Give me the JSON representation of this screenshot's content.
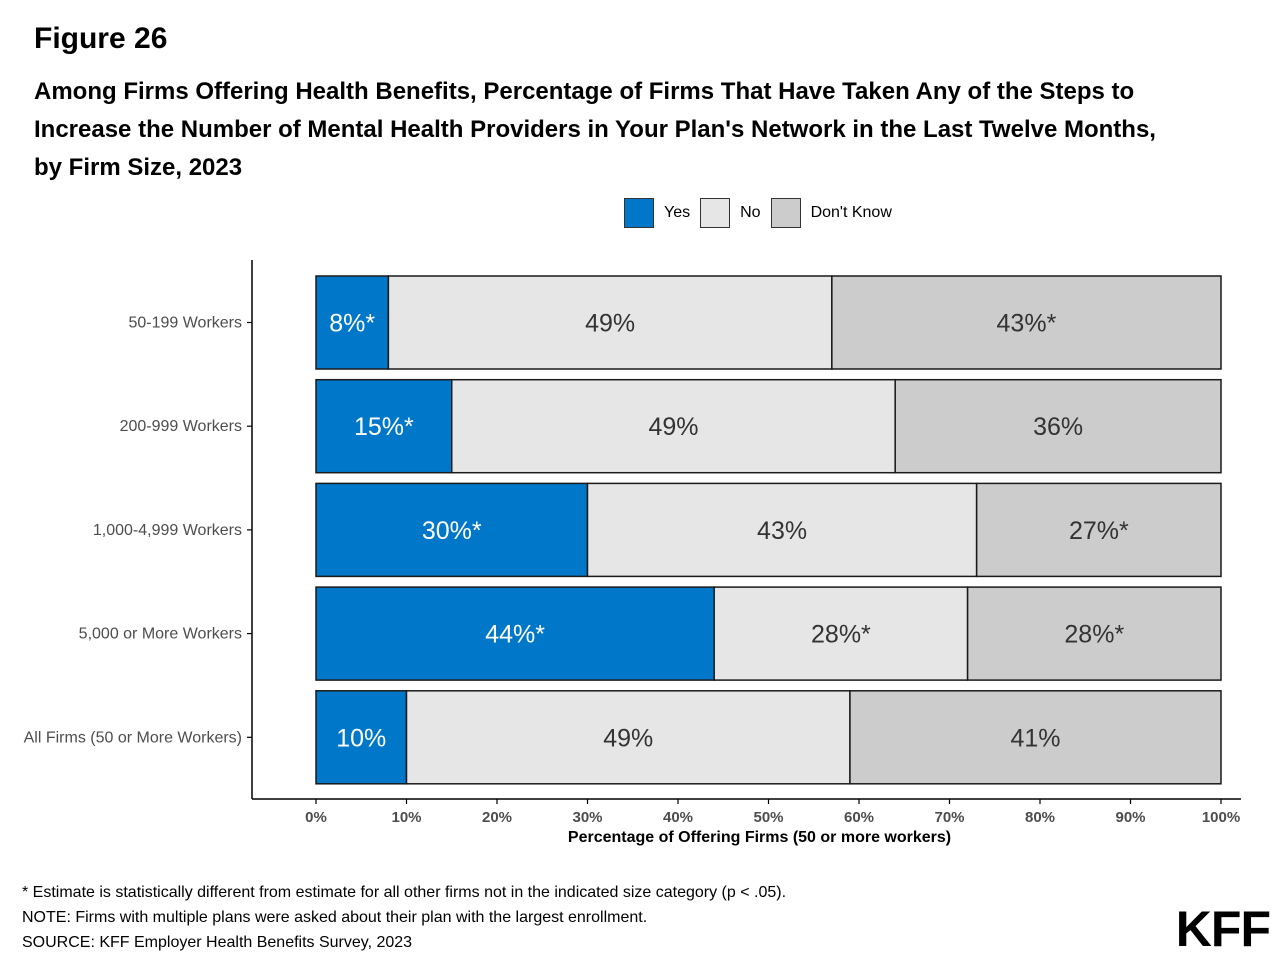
{
  "figure_label": "Figure 26",
  "chart_data": {
    "type": "bar",
    "orientation": "horizontal",
    "stacked": true,
    "title": "Among Firms Offering Health Benefits, Percentage of Firms That Have Taken Any of the Steps to Increase the Number of Mental Health Providers in Your Plan's Network in the Last Twelve Months, by Firm Size, 2023",
    "xlabel": "Percentage of Offering Firms (50 or more workers)",
    "xlim": [
      0,
      100
    ],
    "x_ticks": [
      "0%",
      "10%",
      "20%",
      "30%",
      "40%",
      "50%",
      "60%",
      "70%",
      "80%",
      "90%",
      "100%"
    ],
    "categories": [
      "50-199 Workers",
      "200-999 Workers",
      "1,000-4,999 Workers",
      "5,000 or More Workers",
      "All Firms (50 or More Workers)"
    ],
    "legend_position": "top",
    "series": [
      {
        "name": "Yes",
        "color": "#0077c8",
        "label_color": "#ffffff",
        "values": [
          8,
          15,
          30,
          44,
          10
        ],
        "labels": [
          "8%*",
          "15%*",
          "30%*",
          "44%*",
          "10%"
        ]
      },
      {
        "name": "No",
        "color": "#e6e6e6",
        "label_color": "#333333",
        "values": [
          49,
          49,
          43,
          28,
          49
        ],
        "labels": [
          "49%",
          "49%",
          "43%",
          "28%*",
          "49%"
        ]
      },
      {
        "name": "Don't Know",
        "color": "#cccccc",
        "label_color": "#333333",
        "values": [
          43,
          36,
          27,
          28,
          41
        ],
        "labels": [
          "43%*",
          "36%",
          "27%*",
          "28%*",
          "41%"
        ]
      }
    ]
  },
  "footnotes": {
    "significance": "* Estimate is statistically different from estimate for all other firms not in the indicated size category (p < .05).",
    "note": "NOTE: Firms with multiple plans were asked about their plan with the largest enrollment.",
    "source": "SOURCE: KFF Employer Health Benefits Survey, 2023"
  },
  "logo_text": "KFF"
}
